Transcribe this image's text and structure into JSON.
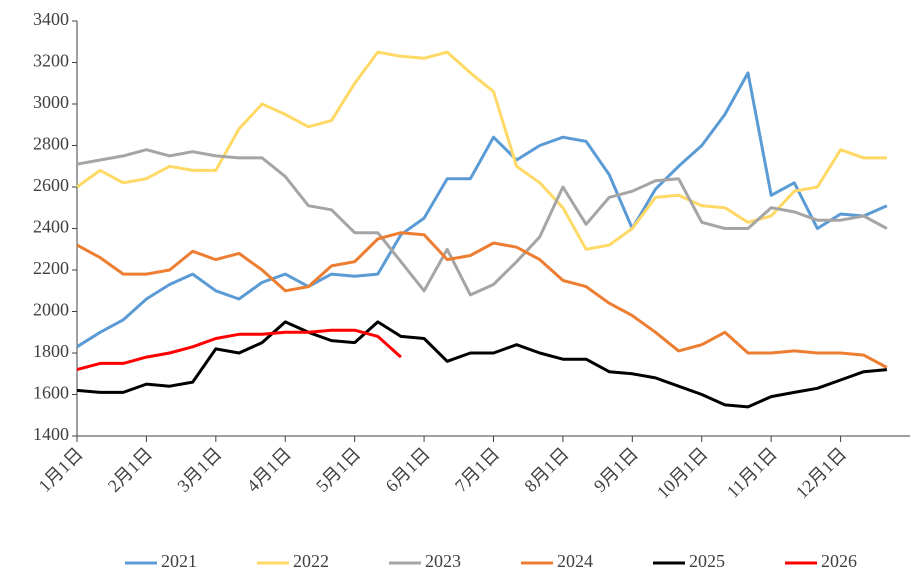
{
  "chart_data": {
    "type": "line",
    "categories": [
      "1月1日",
      null,
      null,
      "2月1日",
      null,
      null,
      "3月1日",
      null,
      null,
      "4月1日",
      null,
      null,
      "5月1日",
      null,
      null,
      "6月1日",
      null,
      null,
      "7月1日",
      null,
      null,
      "8月1日",
      null,
      null,
      "9月1日",
      null,
      null,
      "10月1日",
      null,
      null,
      "11月1日",
      null,
      null,
      "12月1日",
      null,
      null
    ],
    "series": [
      {
        "name": "2021",
        "color": "#5b9bd5",
        "values": [
          1830,
          1900,
          1960,
          2060,
          2130,
          2180,
          2100,
          2060,
          2140,
          2180,
          2120,
          2180,
          2170,
          2180,
          2370,
          2450,
          2640,
          2640,
          2840,
          2730,
          2800,
          2840,
          2820,
          2660,
          2400,
          2590,
          2700,
          2800,
          2950,
          3150,
          2560,
          2620,
          2400,
          2470,
          2460,
          2510
        ]
      },
      {
        "name": "2022",
        "color": "#ffd966",
        "values": [
          2600,
          2680,
          2620,
          2640,
          2700,
          2680,
          2680,
          2880,
          3000,
          2950,
          2890,
          2920,
          3100,
          3250,
          3230,
          3220,
          3250,
          3150,
          3060,
          2700,
          2620,
          2500,
          2300,
          2320,
          2400,
          2550,
          2560,
          2510,
          2500,
          2430,
          2460,
          2580,
          2600,
          2780,
          2740,
          2740
        ]
      },
      {
        "name": "2023",
        "color": "#a5a5a5",
        "values": [
          2710,
          2730,
          2750,
          2780,
          2750,
          2770,
          2750,
          2740,
          2740,
          2650,
          2510,
          2490,
          2380,
          2380,
          2240,
          2100,
          2300,
          2080,
          2130,
          2240,
          2360,
          2600,
          2420,
          2550,
          2580,
          2630,
          2640,
          2430,
          2400,
          2400,
          2500,
          2480,
          2440,
          2440,
          2460,
          2400
        ]
      },
      {
        "name": "2024",
        "color": "#ed7d31",
        "values": [
          2320,
          2260,
          2180,
          2180,
          2200,
          2290,
          2250,
          2280,
          2200,
          2100,
          2120,
          2220,
          2240,
          2350,
          2380,
          2370,
          2250,
          2270,
          2330,
          2310,
          2250,
          2150,
          2120,
          2040,
          1980,
          1900,
          1810,
          1840,
          1900,
          1800,
          1800,
          1810,
          1800,
          1800,
          1790,
          1730
        ]
      },
      {
        "name": "2025",
        "color": "#000000",
        "values": [
          1620,
          1610,
          1610,
          1650,
          1640,
          1660,
          1820,
          1800,
          1850,
          1950,
          1900,
          1860,
          1850,
          1950,
          1880,
          1870,
          1760,
          1800,
          1800,
          1840,
          1800,
          1770,
          1770,
          1710,
          1700,
          1680,
          1640,
          1600,
          1550,
          1540,
          1590,
          1610,
          1630,
          1670,
          1710,
          1720
        ]
      },
      {
        "name": "2026",
        "color": "#ff0000",
        "values": [
          1720,
          1750,
          1750,
          1780,
          1800,
          1830,
          1870,
          1890,
          1890,
          1900,
          1900,
          1910,
          1910,
          1880,
          1780,
          null,
          null,
          null,
          null,
          null,
          null,
          null,
          null,
          null,
          null,
          null,
          null,
          null,
          null,
          null,
          null,
          null,
          null,
          null,
          null,
          null
        ]
      }
    ],
    "ylim": [
      1400,
      3400
    ],
    "yticks": [
      1400,
      1600,
      1800,
      2000,
      2200,
      2400,
      2600,
      2800,
      3000,
      3200,
      3400
    ],
    "grid": false,
    "legend": "bottom"
  }
}
